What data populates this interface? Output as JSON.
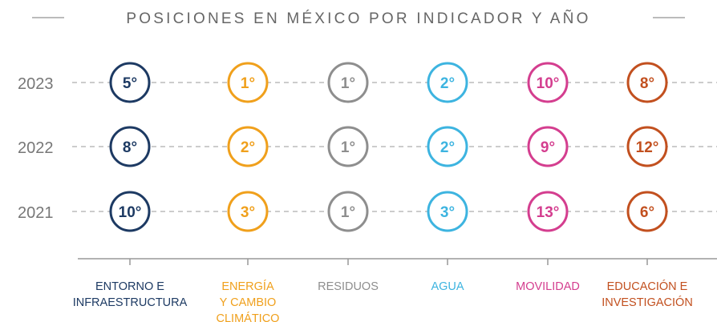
{
  "title": "POSICIONES EN MÉXICO POR INDICADOR Y AÑO",
  "years": [
    "2023",
    "2022",
    "2021"
  ],
  "indicators": [
    {
      "label": [
        "ENTORNO E",
        "INFRAESTRUCTURA"
      ],
      "color": "#1d3a63",
      "positions": [
        "5°",
        "8°",
        "10°"
      ]
    },
    {
      "label": [
        "ENERGÍA",
        "Y CAMBIO",
        "CLIMÁTICO"
      ],
      "color": "#f0a01c",
      "positions": [
        "1°",
        "2°",
        "3°"
      ]
    },
    {
      "label": [
        "RESIDUOS"
      ],
      "color": "#8e8e8e",
      "positions": [
        "1°",
        "1°",
        "1°"
      ]
    },
    {
      "label": [
        "AGUA"
      ],
      "color": "#3db4e0",
      "positions": [
        "2°",
        "2°",
        "3°"
      ]
    },
    {
      "label": [
        "MOVILIDAD"
      ],
      "color": "#d43e8f",
      "positions": [
        "10°",
        "9°",
        "13°"
      ]
    },
    {
      "label": [
        "EDUCACIÓN E",
        "INVESTIGACIÓN"
      ],
      "color": "#c2501f",
      "positions": [
        "8°",
        "12°",
        "6°"
      ]
    }
  ]
}
